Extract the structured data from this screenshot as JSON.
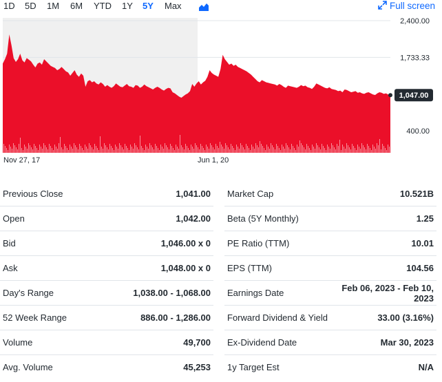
{
  "toolbar": {
    "ranges": [
      "1D",
      "5D",
      "1M",
      "6M",
      "YTD",
      "1Y",
      "5Y",
      "Max"
    ],
    "active_range": "5Y",
    "chart_type_icon": "mountain-chart-icon",
    "fullscreen_label": "Full screen",
    "fullscreen_icon": "expand-icon"
  },
  "chart_data": {
    "type": "area",
    "y_ticks": [
      "2,400.00",
      "1,733.33",
      "400.00"
    ],
    "x_ticks": [
      "Nov 27, 17",
      "Jun 1, 20"
    ],
    "current_price_label": "1,047.00",
    "ylim": [
      0,
      2400
    ],
    "y_scale_note": "area chart of price with volume bars at bottom",
    "colors": {
      "area": "#eb0f29",
      "badge": "#232a31",
      "shade": "#f0f0f0"
    },
    "x_range": [
      "2017-11-27",
      "2023-01-06"
    ],
    "series": [
      {
        "values": [
          1620,
          1700,
          1800,
          2150,
          1950,
          1720,
          1650,
          1700,
          1800,
          1680,
          1640,
          1720,
          1690,
          1660,
          1600,
          1550,
          1620,
          1640,
          1600,
          1700,
          1660,
          1620,
          1580,
          1560,
          1540,
          1500,
          1520,
          1560,
          1520,
          1480,
          1460,
          1400,
          1450,
          1500,
          1420,
          1380,
          1440,
          1400,
          1200,
          1300,
          1320,
          1280,
          1300,
          1260,
          1240,
          1280,
          1250,
          1200,
          1230,
          1200,
          1180,
          1210,
          1260,
          1230,
          1200,
          1190,
          1220,
          1250,
          1210,
          1200,
          1180,
          1230,
          1220,
          1180,
          1200,
          1240,
          1210,
          1190,
          1170,
          1150,
          1180,
          1200,
          1180,
          1150,
          1130,
          1160,
          1180,
          1170,
          1100,
          1080,
          1050,
          1020,
          1000,
          1030,
          1060,
          1080,
          1120,
          1250,
          1200,
          1260,
          1300,
          1240,
          1280,
          1310,
          1380,
          1500,
          1450,
          1420,
          1400,
          1380,
          1520,
          1780,
          1700,
          1650,
          1600,
          1620,
          1580,
          1600,
          1560,
          1540,
          1520,
          1500,
          1480,
          1450,
          1420,
          1380,
          1340,
          1300,
          1280,
          1320,
          1300,
          1280,
          1270,
          1260,
          1250,
          1240,
          1220,
          1250,
          1230,
          1200,
          1180,
          1220,
          1210,
          1200,
          1190,
          1180,
          1200,
          1230,
          1210,
          1220,
          1190,
          1180,
          1160,
          1200,
          1260,
          1240,
          1220,
          1200,
          1180,
          1170,
          1190,
          1160,
          1150,
          1140,
          1120,
          1130,
          1100,
          1150,
          1140,
          1120,
          1100,
          1110,
          1120,
          1090,
          1100,
          1080,
          1070,
          1090,
          1100,
          1080,
          1060,
          1050,
          1080,
          1100,
          1090,
          1070,
          1080,
          1060,
          1047
        ]
      }
    ]
  },
  "stats": {
    "left": [
      {
        "label": "Previous Close",
        "value": "1,041.00"
      },
      {
        "label": "Open",
        "value": "1,042.00"
      },
      {
        "label": "Bid",
        "value": "1,046.00 x 0"
      },
      {
        "label": "Ask",
        "value": "1,048.00 x 0"
      },
      {
        "label": "Day's Range",
        "value": "1,038.00 - 1,068.00"
      },
      {
        "label": "52 Week Range",
        "value": "886.00 - 1,286.00"
      },
      {
        "label": "Volume",
        "value": "49,700"
      },
      {
        "label": "Avg. Volume",
        "value": "45,253"
      }
    ],
    "right": [
      {
        "label": "Market Cap",
        "value": "10.521B"
      },
      {
        "label": "Beta (5Y Monthly)",
        "value": "1.25"
      },
      {
        "label": "PE Ratio (TTM)",
        "value": "10.01"
      },
      {
        "label": "EPS (TTM)",
        "value": "104.56"
      },
      {
        "label": "Earnings Date",
        "value": "Feb 06, 2023 - Feb 10, 2023"
      },
      {
        "label": "Forward Dividend & Yield",
        "value": "33.00 (3.16%)"
      },
      {
        "label": "Ex-Dividend Date",
        "value": "Mar 30, 2023"
      },
      {
        "label": "1y Target Est",
        "value": "N/A"
      }
    ]
  }
}
